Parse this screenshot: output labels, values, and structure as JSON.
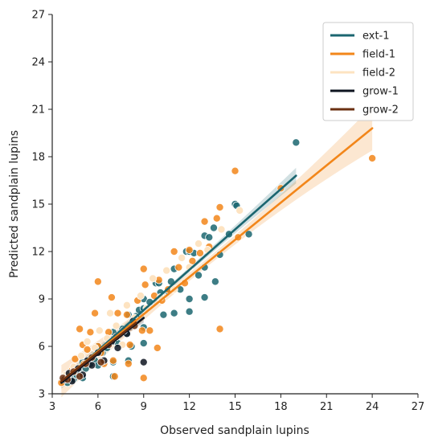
{
  "chart_data": {
    "type": "scatter",
    "title": "",
    "xlabel": "Observed sandplain lupins",
    "ylabel": "Predicted sandplain lupins",
    "xlim": [
      3,
      27
    ],
    "ylim": [
      3,
      27
    ],
    "xticks": [
      3,
      6,
      9,
      12,
      15,
      18,
      21,
      24,
      27
    ],
    "yticks": [
      3,
      6,
      9,
      12,
      15,
      18,
      21,
      24,
      27
    ],
    "grid": false,
    "legend_position": "top-right",
    "series": [
      {
        "name": "ext-1",
        "color": "#1b6670",
        "points": [
          [
            3.7,
            3.8
          ],
          [
            3.9,
            4.1
          ],
          [
            4.0,
            3.7
          ],
          [
            4.2,
            4.0
          ],
          [
            4.4,
            3.9
          ],
          [
            4.6,
            4.2
          ],
          [
            4.8,
            4.4
          ],
          [
            5.0,
            4.0
          ],
          [
            5.0,
            5.0
          ],
          [
            5.2,
            4.6
          ],
          [
            5.5,
            4.9
          ],
          [
            5.8,
            5.1
          ],
          [
            6.0,
            4.8
          ],
          [
            6.0,
            6.0
          ],
          [
            6.3,
            5.6
          ],
          [
            6.6,
            5.9
          ],
          [
            7.0,
            5.0
          ],
          [
            7.0,
            6.9
          ],
          [
            7.0,
            4.1
          ],
          [
            7.3,
            6.2
          ],
          [
            7.6,
            7.1
          ],
          [
            7.9,
            6.8
          ],
          [
            8.0,
            8.0
          ],
          [
            8.0,
            5.1
          ],
          [
            8.2,
            6.0
          ],
          [
            8.5,
            7.9
          ],
          [
            8.7,
            8.3
          ],
          [
            9.0,
            9.0
          ],
          [
            9.0,
            6.2
          ],
          [
            9.0,
            7.2
          ],
          [
            9.0,
            8.4
          ],
          [
            9.4,
            8.8
          ],
          [
            9.8,
            10.0
          ],
          [
            10.0,
            10.0
          ],
          [
            10.1,
            9.4
          ],
          [
            10.3,
            8.0
          ],
          [
            10.6,
            9.5
          ],
          [
            10.8,
            10.1
          ],
          [
            11.0,
            10.9
          ],
          [
            11.0,
            8.1
          ],
          [
            11.4,
            9.6
          ],
          [
            11.8,
            12.0
          ],
          [
            12.0,
            12.0
          ],
          [
            12.0,
            9.0
          ],
          [
            12.0,
            8.2
          ],
          [
            12.3,
            11.9
          ],
          [
            12.6,
            10.5
          ],
          [
            13.0,
            13.0
          ],
          [
            13.0,
            9.1
          ],
          [
            13.0,
            11.0
          ],
          [
            13.3,
            12.9
          ],
          [
            13.6,
            13.5
          ],
          [
            13.7,
            10.1
          ],
          [
            14.0,
            11.8
          ],
          [
            14.6,
            13.1
          ],
          [
            15.0,
            15.0
          ],
          [
            15.1,
            14.9
          ],
          [
            15.9,
            13.1
          ],
          [
            19.0,
            18.9
          ]
        ]
      },
      {
        "name": "field-1",
        "color": "#f2861a",
        "points": [
          [
            3.6,
            3.7
          ],
          [
            4.0,
            4.1
          ],
          [
            4.3,
            4.5
          ],
          [
            4.5,
            5.2
          ],
          [
            4.8,
            7.1
          ],
          [
            5.0,
            6.1
          ],
          [
            5.1,
            4.9
          ],
          [
            5.3,
            5.8
          ],
          [
            5.5,
            6.9
          ],
          [
            5.8,
            8.1
          ],
          [
            6.0,
            10.1
          ],
          [
            6.0,
            6.0
          ],
          [
            6.2,
            5.6
          ],
          [
            6.4,
            4.9
          ],
          [
            6.7,
            6.9
          ],
          [
            6.9,
            9.1
          ],
          [
            7.0,
            5.1
          ],
          [
            7.1,
            4.1
          ],
          [
            7.3,
            8.1
          ],
          [
            7.6,
            6.9
          ],
          [
            7.9,
            8.0
          ],
          [
            8.0,
            4.9
          ],
          [
            8.1,
            6.1
          ],
          [
            8.3,
            7.4
          ],
          [
            8.6,
            8.9
          ],
          [
            8.9,
            7.0
          ],
          [
            9.0,
            10.9
          ],
          [
            9.0,
            4.0
          ],
          [
            9.1,
            9.9
          ],
          [
            9.4,
            7.0
          ],
          [
            9.7,
            9.2
          ],
          [
            9.9,
            5.9
          ],
          [
            10.0,
            10.2
          ],
          [
            10.2,
            8.9
          ],
          [
            10.6,
            9.6
          ],
          [
            11.0,
            12.0
          ],
          [
            11.3,
            11.0
          ],
          [
            11.7,
            10.0
          ],
          [
            12.0,
            12.1
          ],
          [
            12.2,
            11.4
          ],
          [
            12.7,
            11.9
          ],
          [
            13.0,
            13.9
          ],
          [
            13.3,
            12.3
          ],
          [
            13.8,
            14.1
          ],
          [
            14.0,
            14.8
          ],
          [
            14.0,
            7.1
          ],
          [
            15.0,
            17.1
          ],
          [
            15.2,
            12.9
          ],
          [
            18.0,
            16.0
          ],
          [
            24.0,
            17.9
          ]
        ]
      },
      {
        "name": "field-2",
        "color": "#fde3c1",
        "points": [
          [
            3.9,
            4.2
          ],
          [
            4.4,
            4.7
          ],
          [
            4.9,
            5.4
          ],
          [
            5.3,
            6.3
          ],
          [
            5.8,
            5.9
          ],
          [
            6.1,
            7.0
          ],
          [
            6.6,
            6.5
          ],
          [
            6.8,
            8.1
          ],
          [
            7.2,
            7.3
          ],
          [
            7.6,
            6.1
          ],
          [
            7.9,
            8.6
          ],
          [
            8.4,
            7.8
          ],
          [
            8.8,
            9.2
          ],
          [
            9.2,
            8.4
          ],
          [
            9.6,
            10.3
          ],
          [
            10.1,
            9.1
          ],
          [
            10.5,
            10.8
          ],
          [
            11.0,
            9.6
          ],
          [
            11.5,
            11.6
          ],
          [
            12.0,
            11.0
          ],
          [
            12.6,
            12.5
          ],
          [
            13.2,
            12.1
          ],
          [
            14.1,
            13.4
          ],
          [
            15.3,
            14.6
          ]
        ]
      },
      {
        "name": "grow-1",
        "color": "#0e1420",
        "points": [
          [
            3.8,
            3.9
          ],
          [
            4.1,
            4.3
          ],
          [
            4.3,
            3.8
          ],
          [
            4.7,
            4.6
          ],
          [
            5.0,
            4.2
          ],
          [
            5.3,
            5.1
          ],
          [
            5.6,
            4.8
          ],
          [
            6.0,
            5.6
          ],
          [
            6.4,
            5.1
          ],
          [
            6.9,
            6.3
          ],
          [
            7.3,
            5.9
          ],
          [
            7.9,
            6.8
          ],
          [
            8.3,
            7.6
          ],
          [
            9.0,
            5.0
          ]
        ]
      },
      {
        "name": "grow-2",
        "color": "#6b3012",
        "points": [
          [
            3.7,
            4.0
          ],
          [
            4.0,
            3.9
          ],
          [
            4.4,
            4.4
          ],
          [
            4.8,
            4.1
          ],
          [
            5.2,
            4.9
          ],
          [
            5.6,
            5.3
          ],
          [
            6.2,
            5.0
          ],
          [
            6.7,
            6.1
          ],
          [
            7.2,
            6.6
          ],
          [
            7.7,
            7.0
          ],
          [
            8.4,
            7.3
          ]
        ]
      }
    ],
    "fits": [
      {
        "series": "ext-1",
        "x": [
          3.6,
          19.0
        ],
        "y": [
          3.7,
          16.8
        ],
        "band": [
          0.15,
          0.5
        ]
      },
      {
        "series": "field-1",
        "x": [
          3.6,
          24.0
        ],
        "y": [
          3.8,
          19.8
        ],
        "band": [
          0.25,
          1.4
        ]
      },
      {
        "series": "grow-1",
        "x": [
          3.6,
          9.0
        ],
        "y": [
          3.7,
          7.8
        ],
        "band": [
          0.1,
          0.3
        ]
      },
      {
        "series": "grow-2",
        "x": [
          3.6,
          8.5
        ],
        "y": [
          3.8,
          7.5
        ],
        "band": [
          0.1,
          0.3
        ]
      }
    ]
  }
}
